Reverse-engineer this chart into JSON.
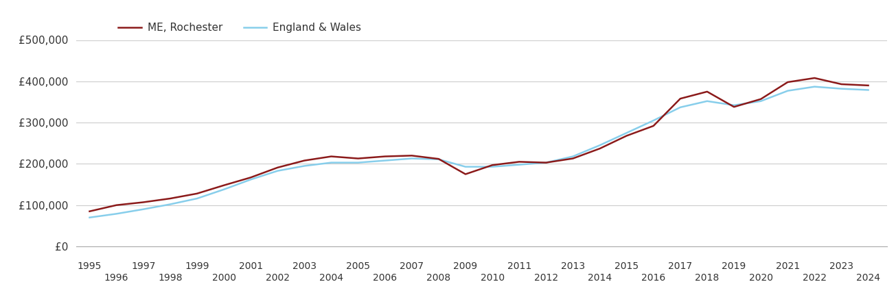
{
  "title": "",
  "rochester_label": "ME, Rochester",
  "england_label": "England & Wales",
  "rochester_color": "#8B1A1A",
  "england_color": "#87CEEB",
  "line_width": 1.8,
  "background_color": "#ffffff",
  "grid_color": "#cccccc",
  "years": [
    1995,
    1996,
    1997,
    1998,
    1999,
    2000,
    2001,
    2002,
    2003,
    2004,
    2005,
    2006,
    2007,
    2008,
    2009,
    2010,
    2011,
    2012,
    2013,
    2014,
    2015,
    2016,
    2017,
    2018,
    2019,
    2020,
    2021,
    2022,
    2023,
    2024
  ],
  "rochester_values": [
    85000,
    100000,
    107000,
    116000,
    128000,
    148000,
    167000,
    191000,
    208000,
    218000,
    213000,
    218000,
    220000,
    212000,
    175000,
    197000,
    205000,
    203000,
    213000,
    237000,
    268000,
    292000,
    358000,
    375000,
    338000,
    357000,
    398000,
    408000,
    393000,
    390000
  ],
  "england_values": [
    70000,
    79000,
    90000,
    102000,
    116000,
    138000,
    162000,
    183000,
    195000,
    203000,
    203000,
    208000,
    213000,
    211000,
    193000,
    193000,
    198000,
    203000,
    218000,
    245000,
    275000,
    305000,
    337000,
    352000,
    342000,
    352000,
    377000,
    387000,
    382000,
    379000
  ],
  "ylim": [
    0,
    500000
  ],
  "yticks": [
    0,
    100000,
    200000,
    300000,
    400000,
    500000
  ],
  "ytick_labels": [
    "£0",
    "£100,000",
    "£200,000",
    "£300,000",
    "£400,000",
    "£500,000"
  ],
  "odd_years": [
    1995,
    1997,
    1999,
    2001,
    2003,
    2005,
    2007,
    2009,
    2011,
    2013,
    2015,
    2017,
    2019,
    2021,
    2023
  ],
  "even_years": [
    1996,
    1998,
    2000,
    2002,
    2004,
    2006,
    2008,
    2010,
    2012,
    2014,
    2016,
    2018,
    2020,
    2022,
    2024
  ],
  "xlim_left": 1994.5,
  "xlim_right": 2024.7
}
